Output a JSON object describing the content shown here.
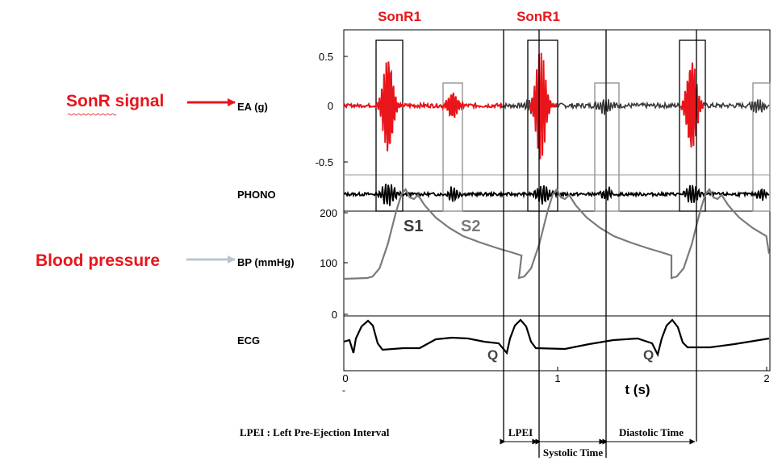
{
  "annotations": {
    "sonr_signal": "SonR signal",
    "blood_pressure": "Blood pressure",
    "sonr1_a": "SonR1",
    "sonr1_b": "SonR1"
  },
  "channels": {
    "ea": "EA (g)",
    "phono": "PHONO",
    "bp": "BP (mmHg)",
    "ecg": "ECG"
  },
  "ea_ticks": [
    "0.5",
    "0",
    "-0.5"
  ],
  "bp_ticks": [
    "200",
    "100",
    "0"
  ],
  "x_ticks": [
    "0",
    "1",
    "2"
  ],
  "x_axis_label": "t (s)",
  "minus_sign": "-",
  "heart_sounds": {
    "s1": "S1",
    "s2": "S2"
  },
  "q_labels": [
    "Q",
    "Q"
  ],
  "legend_text": "LPEI : Left Pre-Ejection Interval",
  "intervals": {
    "lpei": "LPEI",
    "systolic": "Systolic Time",
    "diastolic": "Diastolic Time"
  },
  "colors": {
    "sonr_red": "#e8151b",
    "arrow_gray": "#b9c6d2",
    "bp_trace": "#7a7a7a",
    "box_gray": "#8c8c8c"
  }
}
